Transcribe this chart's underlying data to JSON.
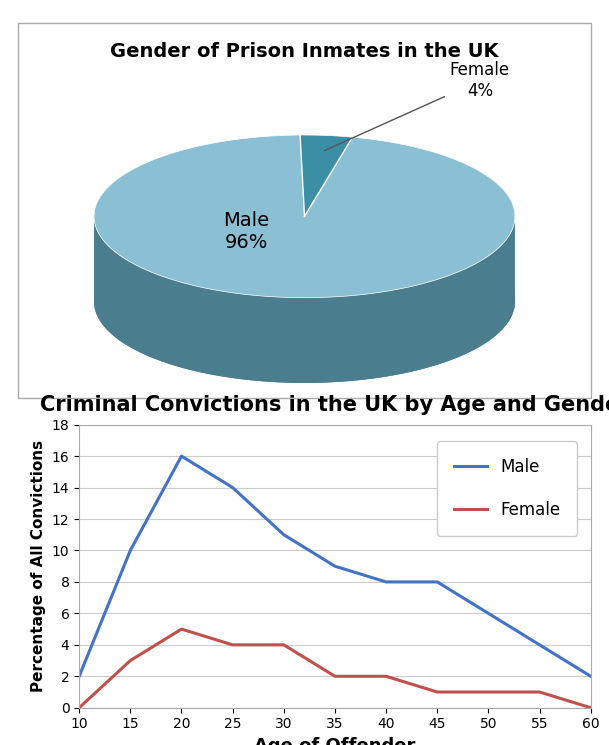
{
  "pie_title": "Gender of Prison Inmates in the UK",
  "pie_labels": [
    "Male",
    "Female"
  ],
  "pie_values": [
    96,
    4
  ],
  "male_top_color": "#8bbfd4",
  "female_top_color": "#3a8fa5",
  "male_side_color": "#4a7d8e",
  "female_side_color": "#1a5f70",
  "line_title": "Criminal Convictions in the UK by Age and Gender",
  "line_xlabel": "Age of Offender",
  "line_ylabel": "Percentage of All Convictions",
  "ages": [
    10,
    15,
    20,
    25,
    30,
    35,
    40,
    45,
    50,
    55,
    60
  ],
  "male_values": [
    2,
    10,
    16,
    14,
    11,
    9,
    8,
    8,
    6,
    4,
    2
  ],
  "female_values": [
    0,
    3,
    5,
    4,
    4,
    2,
    2,
    1,
    1,
    1,
    0
  ],
  "male_line_color": "#4472c4",
  "female_line_color": "#c0504d",
  "line_ylim": [
    0,
    18
  ],
  "line_yticks": [
    0,
    2,
    4,
    6,
    8,
    10,
    12,
    14,
    16,
    18
  ],
  "line_xticks": [
    10,
    15,
    20,
    25,
    30,
    35,
    40,
    45,
    50,
    55,
    60
  ],
  "pie_title_fontsize": 14,
  "line_title_fontsize": 15,
  "axis_label_fontsize": 12,
  "legend_fontsize": 12,
  "background_color": "#ffffff"
}
